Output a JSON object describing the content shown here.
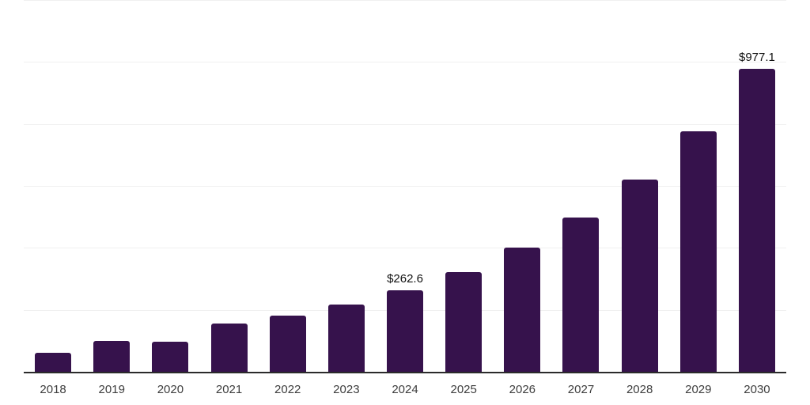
{
  "chart_data": {
    "type": "bar",
    "categories": [
      "2018",
      "2019",
      "2020",
      "2021",
      "2022",
      "2023",
      "2024",
      "2025",
      "2026",
      "2027",
      "2028",
      "2029",
      "2030"
    ],
    "values": [
      62,
      99,
      97,
      157,
      182,
      218,
      262.6,
      322,
      401,
      498,
      620,
      776,
      977.1
    ],
    "data_labels": [
      "",
      "",
      "",
      "",
      "",
      "",
      "$262.6",
      "",
      "",
      "",
      "",
      "",
      "$977.1"
    ],
    "ylim": [
      0,
      1200
    ],
    "gridline_step": 200,
    "grid": true,
    "legend": "none",
    "xlabel": "",
    "ylabel": "",
    "colors": {
      "bar": "#36124C",
      "axis_line": "#2b2b2b",
      "gridline": "#f0f0f0",
      "tick_label": "#3d3d3d",
      "data_label": "#111111",
      "background": "#ffffff"
    }
  }
}
